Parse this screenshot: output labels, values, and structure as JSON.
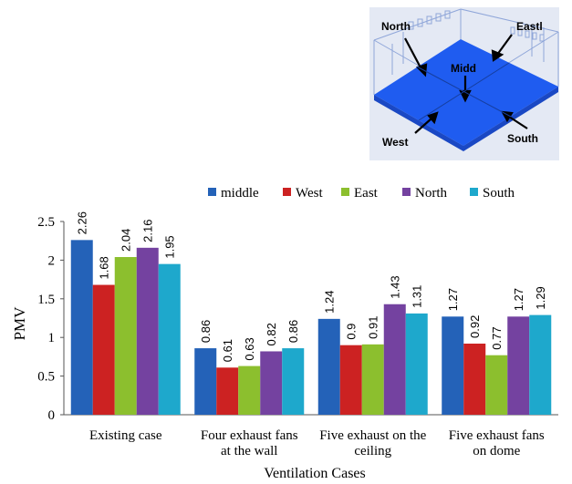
{
  "inset": {
    "labels": [
      "North",
      "Eastl",
      "Midd",
      "West",
      "South"
    ],
    "colors": {
      "floor": "#1f5cf0",
      "frame": "#8fa6d9",
      "background": "#e4e9f4"
    }
  },
  "chart_data": {
    "type": "bar",
    "title": "",
    "xlabel": "Ventilation Cases",
    "ylabel": "PMV",
    "ylim": [
      0,
      2.5
    ],
    "yticks": [
      "0",
      "0.5",
      "1",
      "1.5",
      "2",
      "2.5"
    ],
    "grid": false,
    "legend_position": "top",
    "categories": [
      [
        "Existing case"
      ],
      [
        "Four exhaust fans",
        "at the wall"
      ],
      [
        "Five exhaust on the",
        "ceiling"
      ],
      [
        "Five exhaust fans",
        "on dome"
      ]
    ],
    "series": [
      {
        "name": "middle",
        "color": "#2462b8",
        "values": [
          2.26,
          0.86,
          1.24,
          1.27
        ]
      },
      {
        "name": "West",
        "color": "#cc2222",
        "values": [
          1.68,
          0.61,
          0.9,
          0.92
        ]
      },
      {
        "name": "East",
        "color": "#8cbf2e",
        "values": [
          2.04,
          0.63,
          0.91,
          0.77
        ]
      },
      {
        "name": "North",
        "color": "#7442a0",
        "values": [
          2.16,
          0.82,
          1.43,
          1.27
        ]
      },
      {
        "name": "South",
        "color": "#1ea8cc",
        "values": [
          1.95,
          0.86,
          1.31,
          1.29
        ]
      }
    ]
  }
}
